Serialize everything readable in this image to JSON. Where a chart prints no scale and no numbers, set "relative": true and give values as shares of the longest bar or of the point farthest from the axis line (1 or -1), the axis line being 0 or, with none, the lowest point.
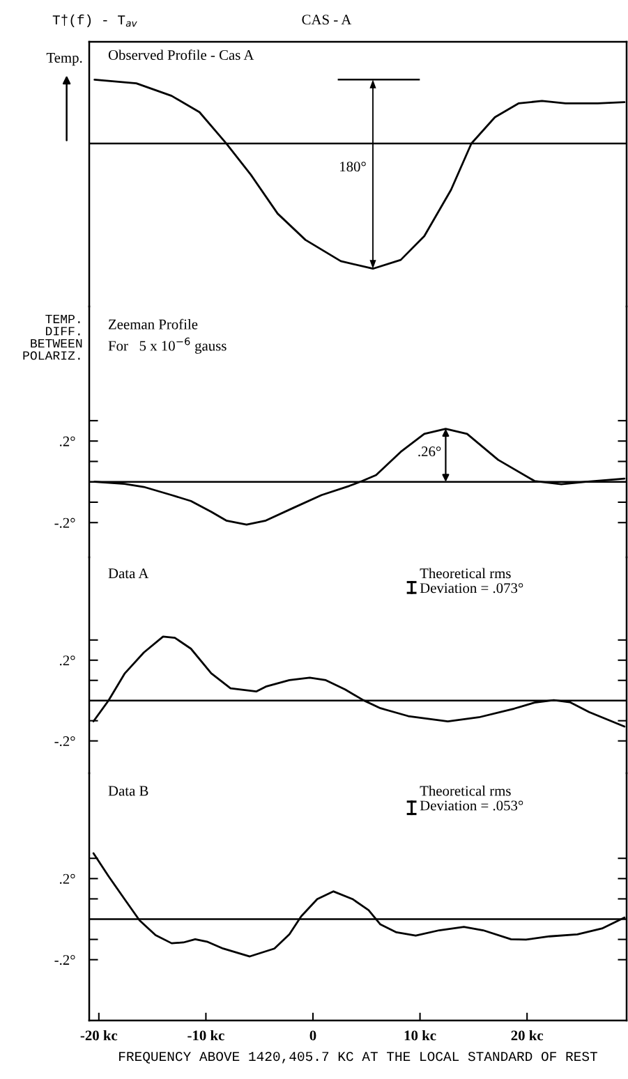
{
  "chart_data": [
    {
      "type": "line",
      "title": "CAS - A",
      "subtitle": "Observed Profile - Cas A",
      "ylabel": "Temp.",
      "relative": true,
      "tick_labels": false,
      "xlim": [
        -20.9,
        29.3
      ],
      "grid": false,
      "marker": "none",
      "line_style": "solid",
      "ref_lines": [
        {
          "axis": "y",
          "value": 0,
          "color": "#000000"
        }
      ],
      "annotations": [
        "T†(f) - T$_{av}$",
        "180°"
      ],
      "legend": false,
      "series": [
        {
          "color": "#000000",
          "x": [
            -20.4,
            -16.5,
            -13.2,
            -10.6,
            -8.1,
            -5.8,
            -3.3,
            -0.7,
            2.6,
            5.6,
            8.2,
            10.4,
            12.9,
            14.8,
            17.0,
            19.2,
            21.4,
            23.6,
            26.6,
            29.1
          ],
          "values": [
            0.51,
            0.48,
            0.38,
            0.25,
            0.0,
            -0.25,
            -0.56,
            -0.77,
            -0.94,
            -1,
            -0.93,
            -0.74,
            -0.37,
            0.0,
            0.21,
            0.32,
            0.34,
            0.32,
            0.32,
            0.33
          ]
        }
      ]
    },
    {
      "type": "line",
      "subtitle": "Zeeman Profile\nFor   5 x 10$^{−6}$ gauss",
      "ylabel": "TEMP.\nDIFF.\nBETWEEN\nPOLARIZ.",
      "tick_labels": "y",
      "xlim": [
        -20.9,
        29.3
      ],
      "ylim": [
        -0.37,
        0.86
      ],
      "yticks": [
        {
          "value": 0.3,
          "label": null
        },
        {
          "value": 0.2,
          "label": ".2°"
        },
        {
          "value": 0.1,
          "label": null
        },
        {
          "value": -0.1,
          "label": null
        },
        {
          "value": -0.2,
          "label": "-.2°"
        }
      ],
      "grid": false,
      "marker": "none",
      "line_style": "solid",
      "ref_lines": [
        {
          "axis": "y",
          "value": 0,
          "color": "#000000"
        }
      ],
      "annotations": [
        {
          "text": ".26°",
          "x": 12.4,
          "y": 0.26
        }
      ],
      "legend": false,
      "series": [
        {
          "color": "#000000",
          "x": [
            -20.4,
            -17.6,
            -15.8,
            -13.2,
            -11.4,
            -9.5,
            -8.1,
            -6.2,
            -4.4,
            -1.8,
            0.8,
            3.4,
            4.6,
            5.9,
            8.2,
            10.4,
            12.4,
            14.4,
            17.3,
            20.7,
            23.2,
            25.5,
            29.1
          ],
          "values": [
            0,
            -0.01,
            -0.025,
            -0.065,
            -0.094,
            -0.147,
            -0.19,
            -0.21,
            -0.19,
            -0.127,
            -0.065,
            -0.02,
            0.004,
            0.033,
            0.147,
            0.235,
            0.26,
            0.235,
            0.108,
            0.004,
            -0.012,
            0,
            0.016
          ]
        }
      ]
    },
    {
      "type": "line",
      "subtitle": "Data A",
      "tick_labels": "y",
      "xlim": [
        -20.9,
        29.3
      ],
      "ylim": [
        -0.36,
        0.71
      ],
      "yticks": [
        {
          "value": 0.3,
          "label": null
        },
        {
          "value": 0.2,
          "label": ".2°"
        },
        {
          "value": 0.1,
          "label": null
        },
        {
          "value": -0.1,
          "label": null
        },
        {
          "value": -0.2,
          "label": "-.2°"
        }
      ],
      "grid": false,
      "marker": "none",
      "line_style": "solid",
      "ref_lines": [
        {
          "axis": "y",
          "value": 0,
          "color": "#000000"
        }
      ],
      "annotations": [
        "Theoretical rms\nDeviation = .073°"
      ],
      "legend": false,
      "series": [
        {
          "color": "#000000",
          "x": [
            -20.5,
            -19.1,
            -17.6,
            -15.8,
            -14.0,
            -12.9,
            -11.4,
            -9.5,
            -7.7,
            -5.3,
            -4.4,
            -2.2,
            -0.3,
            1.2,
            3.0,
            4.7,
            6.3,
            8.9,
            12.6,
            15.5,
            18.8,
            20.7,
            22.5,
            24.0,
            25.8,
            29.1
          ],
          "values": [
            -0.103,
            0,
            0.133,
            0.238,
            0.317,
            0.311,
            0.257,
            0.135,
            0.061,
            0.045,
            0.069,
            0.101,
            0.113,
            0.101,
            0.055,
            0.002,
            -0.038,
            -0.077,
            -0.103,
            -0.083,
            -0.04,
            -0.01,
            0.002,
            -0.008,
            -0.057,
            -0.129
          ]
        }
      ]
    },
    {
      "type": "line",
      "subtitle": "Data B",
      "xlabel": "FREQUENCY ABOVE 1420,405.7 KC AT THE LOCAL STANDARD OF REST",
      "xlim": [
        -20.9,
        29.3
      ],
      "ylim": [
        -0.5,
        0.72
      ],
      "xticks": [
        {
          "value": -20,
          "label": "-20 kc"
        },
        {
          "value": -10,
          "label": "-10 kc"
        },
        0,
        {
          "value": 10,
          "label": "10 kc"
        },
        {
          "value": 20,
          "label": "20 kc"
        }
      ],
      "yticks": [
        {
          "value": 0.3,
          "label": null
        },
        {
          "value": 0.2,
          "label": ".2°"
        },
        {
          "value": 0.1,
          "label": null
        },
        {
          "value": -0.1,
          "label": null
        },
        {
          "value": -0.2,
          "label": "-.2°"
        }
      ],
      "grid": false,
      "marker": "none",
      "line_style": "solid",
      "ref_lines": [
        {
          "axis": "y",
          "value": 0,
          "color": "#000000"
        }
      ],
      "annotations": [
        "Theoretical rms\nDeviation = .053°"
      ],
      "legend": false,
      "series": [
        {
          "color": "#000000",
          "x": [
            -20.5,
            -19.1,
            -17.6,
            -16.2,
            -14.7,
            -13.2,
            -12.1,
            -11.0,
            -9.9,
            -8.4,
            -5.9,
            -3.6,
            -2.2,
            -1.1,
            0.4,
            1.9,
            3.7,
            5.2,
            6.3,
            7.8,
            9.6,
            11.8,
            14.1,
            15.9,
            18.5,
            19.9,
            22.1,
            24.7,
            27.0,
            29.1
          ],
          "values": [
            0.325,
            0.212,
            0.099,
            -0.006,
            -0.079,
            -0.119,
            -0.115,
            -0.099,
            -0.111,
            -0.145,
            -0.184,
            -0.145,
            -0.075,
            0.014,
            0.099,
            0.137,
            0.099,
            0.044,
            -0.026,
            -0.065,
            -0.081,
            -0.055,
            -0.038,
            -0.055,
            -0.099,
            -0.101,
            -0.085,
            -0.075,
            -0.046,
            0.008
          ]
        }
      ]
    }
  ]
}
